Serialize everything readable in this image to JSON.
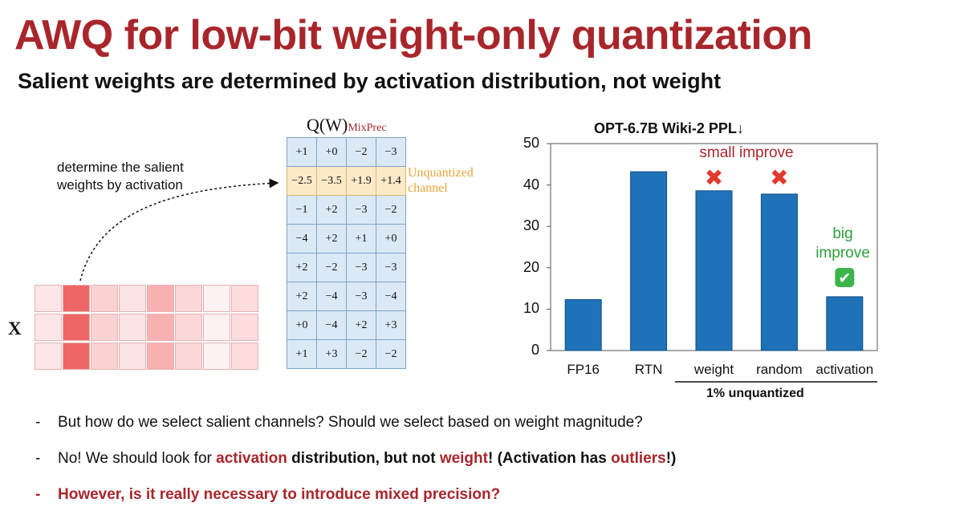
{
  "slide": {
    "title": "AWQ for low-bit weight-only quantization",
    "subtitle": "Salient weights are determined by activation distribution, not weight"
  },
  "diagram": {
    "annotation_line1": "determine the salient",
    "annotation_line2": "weights by activation",
    "x_label": "X",
    "matrix_title_main": "Q(W)",
    "matrix_title_sub": "MixPrec",
    "unquantized_line1": "Unquantized",
    "unquantized_line2": "channel",
    "highlight_row": 1,
    "matrix": [
      [
        "+1",
        "+0",
        "−2",
        "−3"
      ],
      [
        "−2.5",
        "−3.5",
        "+1.9",
        "+1.4"
      ],
      [
        "−1",
        "+2",
        "−3",
        "−2"
      ],
      [
        "−4",
        "+2",
        "+1",
        "+0"
      ],
      [
        "+2",
        "−2",
        "−3",
        "−3"
      ],
      [
        "+2",
        "−4",
        "−3",
        "−4"
      ],
      [
        "+0",
        "−4",
        "+2",
        "+3"
      ],
      [
        "+1",
        "+3",
        "−2",
        "−2"
      ]
    ],
    "activation_colors": [
      "#fde6e6",
      "#ef6666",
      "#fbd2d2",
      "#fde3e3",
      "#f8b1b1",
      "#fbd7d7",
      "#fef1f1",
      "#fcdcdc"
    ]
  },
  "chart_data": {
    "type": "bar",
    "title": "OPT-6.7B Wiki-2 PPL↓",
    "categories": [
      "FP16",
      "RTN",
      "weight",
      "random",
      "activation"
    ],
    "values": [
      12.3,
      43.2,
      38.6,
      37.8,
      13.0
    ],
    "ylim": [
      0,
      50
    ],
    "yticks": [
      0,
      10,
      20,
      30,
      40,
      50
    ],
    "bar_color": "#1f72b8",
    "group_label": "1% unquantized",
    "annotations": {
      "small_improve": "small improve",
      "big_improve_line1": "big",
      "big_improve_line2": "improve",
      "cross_icon": "✖",
      "check_icon": "✔"
    }
  },
  "bullets": {
    "dash": "-",
    "b1": "But how do we select salient channels? Should we select based on weight magnitude?",
    "b2_p1": "No! We should look for ",
    "b2_activation": "activation",
    "b2_p2": " distribution, but not ",
    "b2_weight": "weight",
    "b2_p3": "! (Activation has ",
    "b2_outliers": "outliers",
    "b2_p4": "!)",
    "b3": "However, is it really necessary to introduce mixed precision?"
  }
}
